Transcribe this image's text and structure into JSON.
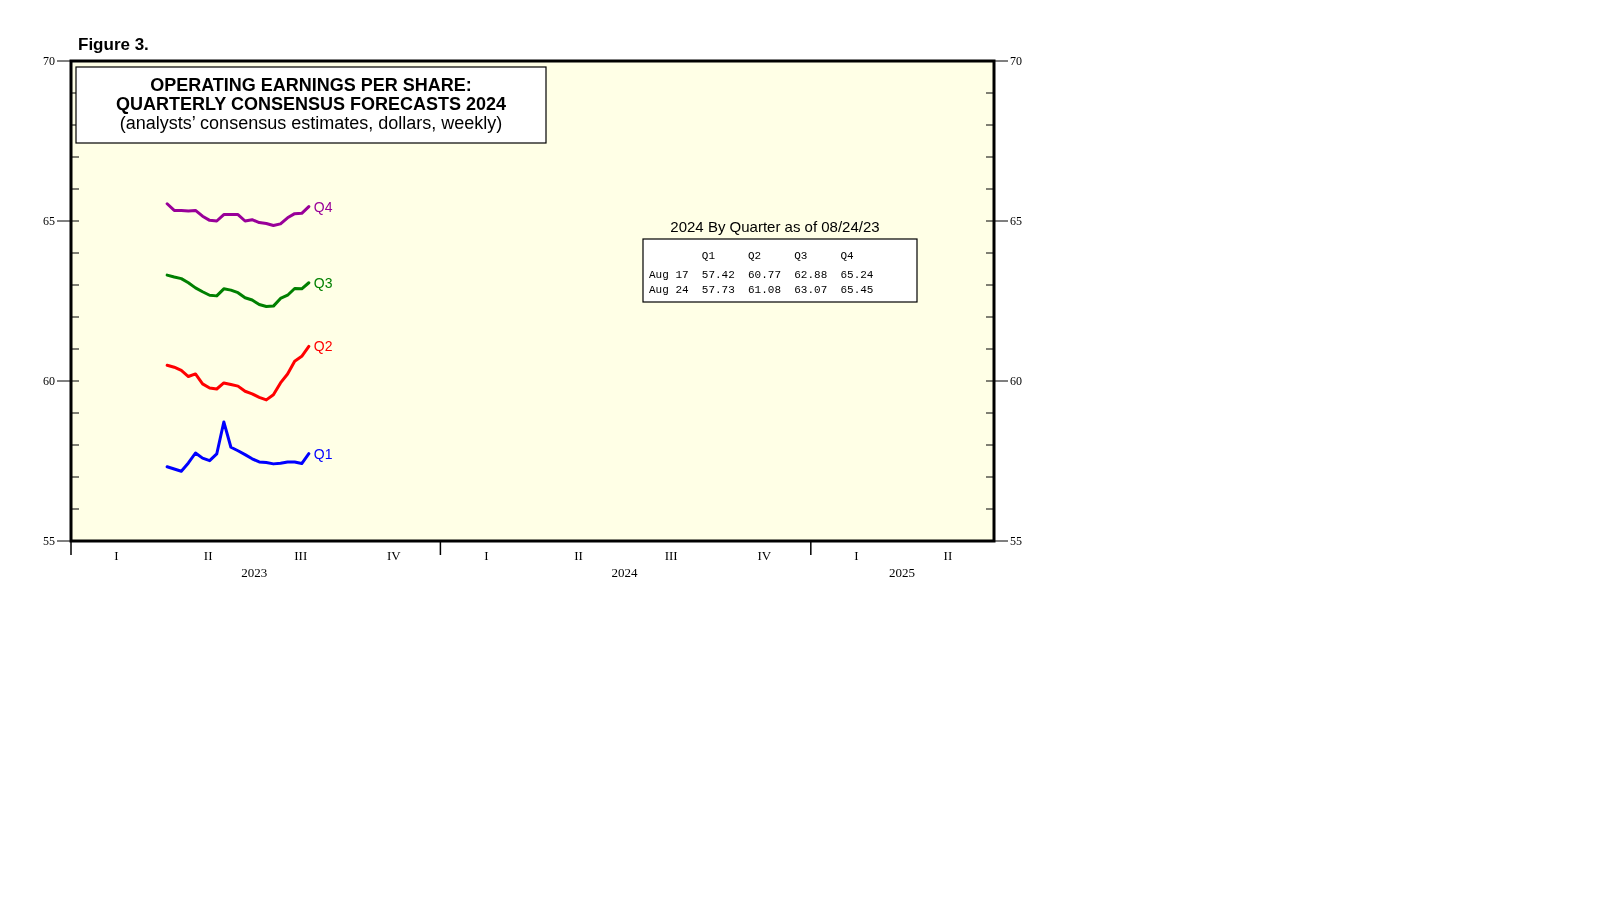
{
  "chart_data": {
    "type": "line",
    "title": "OPERATING EARNINGS PER SHARE:\nQUARTERLY CONSENSUS FORECASTS 2024",
    "subtitle": "(analysts’ consensus estimates, dollars, weekly)",
    "annotations": [
      "Figure 3.",
      "2024 By Quarter as of 08/24/23",
      "        Q1     Q2     Q3     Q4",
      "Aug 17  57.42  60.77  62.88  65.24",
      "Aug 24  57.73  61.08  63.07  65.45",
      "I",
      "II",
      "III",
      "IV",
      "I",
      "II",
      "III",
      "IV",
      "I",
      "II"
    ],
    "x": [
      "2023-04-06",
      "2023-04-13",
      "2023-04-20",
      "2023-04-27",
      "2023-05-04",
      "2023-05-11",
      "2023-05-18",
      "2023-05-25",
      "2023-06-01",
      "2023-06-08",
      "2023-06-15",
      "2023-06-22",
      "2023-06-29",
      "2023-07-06",
      "2023-07-13",
      "2023-07-20",
      "2023-07-27",
      "2023-08-03",
      "2023-08-10",
      "2023-08-17",
      "2023-08-24"
    ],
    "series": [
      {
        "name": "Q4",
        "color": "#990099",
        "values": [
          65.54,
          65.33,
          65.33,
          65.31,
          65.33,
          65.15,
          65.02,
          65.0,
          65.2,
          65.2,
          65.2,
          65.0,
          65.04,
          64.95,
          64.92,
          64.86,
          64.91,
          65.1,
          65.23,
          65.24,
          65.45
        ]
      },
      {
        "name": "Q3",
        "color": "#008000",
        "values": [
          63.31,
          63.25,
          63.2,
          63.07,
          62.91,
          62.79,
          62.68,
          62.66,
          62.88,
          62.84,
          62.76,
          62.6,
          62.53,
          62.39,
          62.33,
          62.34,
          62.58,
          62.68,
          62.89,
          62.88,
          63.07
        ]
      },
      {
        "name": "Q2",
        "color": "#ff0000",
        "values": [
          60.49,
          60.43,
          60.33,
          60.14,
          60.22,
          59.91,
          59.78,
          59.75,
          59.94,
          59.89,
          59.84,
          59.68,
          59.6,
          59.49,
          59.41,
          59.57,
          59.94,
          60.22,
          60.62,
          60.77,
          61.08
        ]
      },
      {
        "name": "Q1",
        "color": "#0000ff",
        "values": [
          57.32,
          57.25,
          57.18,
          57.44,
          57.75,
          57.59,
          57.51,
          57.72,
          58.72,
          57.93,
          57.82,
          57.7,
          57.57,
          57.47,
          57.45,
          57.41,
          57.43,
          57.47,
          57.47,
          57.42,
          57.73
        ]
      }
    ],
    "xlim": [
      "2023-01-01",
      "2025-07-01"
    ],
    "xticks": [
      {
        "value": "2023-01-01",
        "label": null
      },
      {
        "value": "2024-01-01",
        "label": null
      },
      {
        "value": "2025-01-01",
        "label": null
      },
      {
        "value": "2023-07-01",
        "label": "2023"
      },
      {
        "value": "2024-07-01",
        "label": "2024"
      },
      {
        "value": "2025-04-01",
        "label": "2025"
      }
    ],
    "ylim": [
      55,
      70
    ],
    "yticks": [
      55,
      {
        "value": 56,
        "label": null
      },
      {
        "value": 57,
        "label": null
      },
      {
        "value": 58,
        "label": null
      },
      {
        "value": 59,
        "label": null
      },
      60,
      {
        "value": 61,
        "label": null
      },
      {
        "value": 62,
        "label": null
      },
      {
        "value": 63,
        "label": null
      },
      {
        "value": 64,
        "label": null
      },
      65,
      {
        "value": 66,
        "label": null
      },
      {
        "value": 67,
        "label": null
      },
      {
        "value": 68,
        "label": null
      },
      {
        "value": 69,
        "label": null
      },
      70
    ],
    "y2lim": [
      55,
      70
    ],
    "y2ticks": [
      55,
      {
        "value": 56,
        "label": null
      },
      {
        "value": 57,
        "label": null
      },
      {
        "value": 58,
        "label": null
      },
      {
        "value": 59,
        "label": null
      },
      60,
      {
        "value": 61,
        "label": null
      },
      {
        "value": 62,
        "label": null
      },
      {
        "value": 63,
        "label": null
      },
      {
        "value": 64,
        "label": null
      },
      65,
      {
        "value": 66,
        "label": null
      },
      {
        "value": 67,
        "label": null
      },
      {
        "value": 68,
        "label": null
      },
      {
        "value": 69,
        "label": null
      },
      70
    ],
    "grid": false,
    "marker": "none",
    "line_style": "solid"
  }
}
